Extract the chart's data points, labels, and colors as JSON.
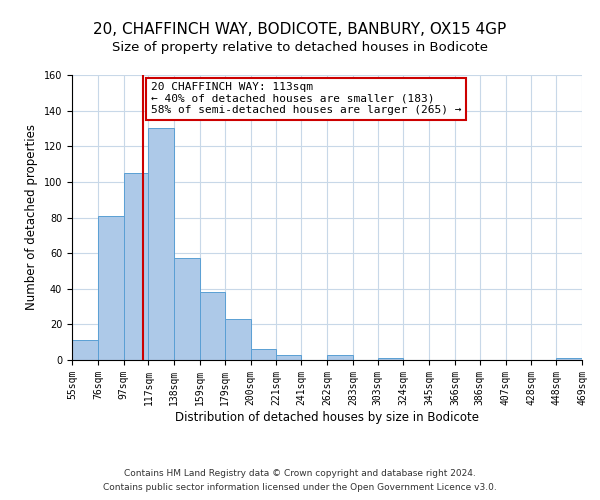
{
  "title": "20, CHAFFINCH WAY, BODICOTE, BANBURY, OX15 4GP",
  "subtitle": "Size of property relative to detached houses in Bodicote",
  "xlabel": "Distribution of detached houses by size in Bodicote",
  "ylabel": "Number of detached properties",
  "bin_edges": [
    55,
    76,
    97,
    117,
    138,
    159,
    179,
    200,
    221,
    241,
    262,
    283,
    303,
    324,
    345,
    366,
    386,
    407,
    428,
    448,
    469
  ],
  "bin_counts": [
    11,
    81,
    105,
    130,
    57,
    38,
    23,
    6,
    3,
    0,
    3,
    0,
    1,
    0,
    0,
    0,
    0,
    0,
    0,
    1
  ],
  "bar_color": "#adc9e8",
  "bar_edgecolor": "#5a9fd4",
  "vline_x": 113,
  "vline_color": "#cc0000",
  "ylim": [
    0,
    160
  ],
  "yticks": [
    0,
    20,
    40,
    60,
    80,
    100,
    120,
    140,
    160
  ],
  "tick_labels": [
    "55sqm",
    "76sqm",
    "97sqm",
    "117sqm",
    "138sqm",
    "159sqm",
    "179sqm",
    "200sqm",
    "221sqm",
    "241sqm",
    "262sqm",
    "283sqm",
    "303sqm",
    "324sqm",
    "345sqm",
    "366sqm",
    "386sqm",
    "407sqm",
    "428sqm",
    "448sqm",
    "469sqm"
  ],
  "annotation_title": "20 CHAFFINCH WAY: 113sqm",
  "annotation_line1": "← 40% of detached houses are smaller (183)",
  "annotation_line2": "58% of semi-detached houses are larger (265) →",
  "footer_line1": "Contains HM Land Registry data © Crown copyright and database right 2024.",
  "footer_line2": "Contains public sector information licensed under the Open Government Licence v3.0.",
  "bg_color": "#ffffff",
  "grid_color": "#c8d8e8",
  "title_fontsize": 11,
  "subtitle_fontsize": 9.5,
  "axis_label_fontsize": 8.5,
  "tick_fontsize": 7,
  "footer_fontsize": 6.5,
  "annotation_fontsize": 8
}
